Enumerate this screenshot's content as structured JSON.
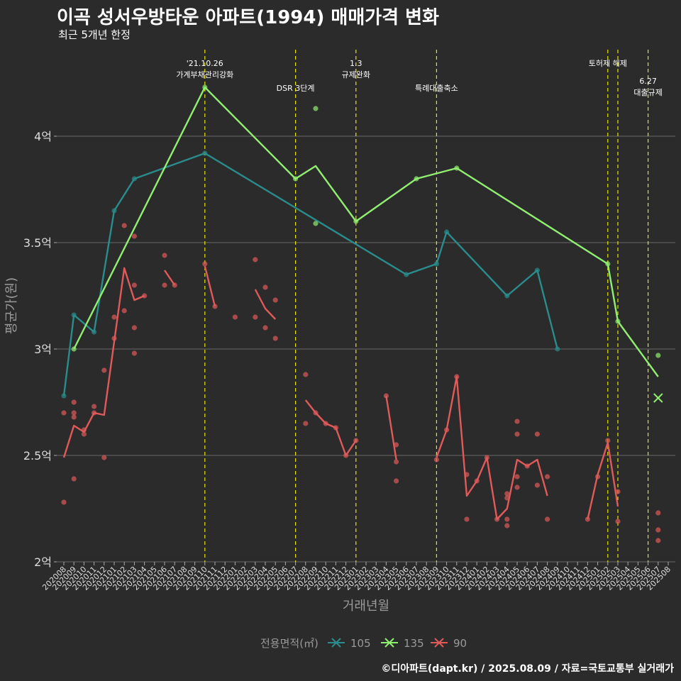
{
  "title": "이곡 성서우방타운 아파트(1994) 매매가격 변화",
  "subtitle": "최근 5개년 한정",
  "footer": "©디아파트(dapt.kr) / 2025.08.09 / 자료=국토교통부 실거래가",
  "colors": {
    "background": "#2b2b2b",
    "grid": "#6a6a6a",
    "event_line": "#e6e600",
    "s105": "#2a8c8c",
    "s135": "#90ee70",
    "s90": "#e05a5a"
  },
  "chart_data": {
    "type": "line",
    "xlabel": "거래년월",
    "ylabel": "평균가(원)",
    "x": [
      "202008",
      "202009",
      "202010",
      "202011",
      "202012",
      "202101",
      "202102",
      "202103",
      "202104",
      "202105",
      "202106",
      "202107",
      "202108",
      "202109",
      "202110",
      "202111",
      "202112",
      "202201",
      "202202",
      "202203",
      "202204",
      "202205",
      "202206",
      "202207",
      "202208",
      "202209",
      "202210",
      "202211",
      "202212",
      "202301",
      "202302",
      "202303",
      "202304",
      "202305",
      "202306",
      "202307",
      "202308",
      "202309",
      "202310",
      "202311",
      "202312",
      "202401",
      "202402",
      "202403",
      "202404",
      "202405",
      "202406",
      "202407",
      "202408",
      "202409",
      "202410",
      "202411",
      "202412",
      "202501",
      "202502",
      "202503",
      "202504",
      "202505",
      "202506",
      "202507",
      "202508"
    ],
    "ylim": [
      2.0,
      4.4
    ],
    "yticks": [
      2.0,
      2.5,
      3.0,
      3.5,
      4.0
    ],
    "ytick_labels": [
      "2억",
      "2.5억",
      "3억",
      "3.5억",
      "4억"
    ],
    "grid": true,
    "legend": {
      "title": "전용면적(㎡)",
      "position": "bottom"
    },
    "events": [
      {
        "x": "202110",
        "label": [
          "'21.10.26",
          "가계부채관리강화"
        ],
        "row": 0
      },
      {
        "x": "202207",
        "label": [
          "DSR 3단계"
        ],
        "row": 1
      },
      {
        "x": "202301",
        "label": [
          "1.3",
          "규제완화"
        ],
        "row": 0
      },
      {
        "x": "202309",
        "label": [
          "특례대출축소"
        ],
        "row": 1
      },
      {
        "x": "202502",
        "label": [
          "토허제 해제"
        ],
        "row": 0
      },
      {
        "x": "202503",
        "label": [],
        "row": 0
      },
      {
        "x": "202506",
        "label": [
          "6.27",
          "대출규제"
        ],
        "row": 2
      }
    ],
    "series": [
      {
        "name": "105",
        "color": "#2a8c8c",
        "line": [
          [
            "202008",
            2.78
          ],
          [
            "202009",
            3.16
          ],
          [
            "202011",
            3.08
          ],
          [
            "202101",
            3.65
          ],
          [
            "202103",
            3.8
          ],
          [
            "202110",
            3.92
          ],
          [
            "202306",
            3.35
          ],
          [
            "202309",
            3.4
          ],
          [
            "202310",
            3.55
          ],
          [
            "202404",
            3.25
          ],
          [
            "202407",
            3.37
          ],
          [
            "202409",
            3.0
          ]
        ],
        "points": [
          [
            "202008",
            2.78
          ],
          [
            "202009",
            3.16
          ],
          [
            "202011",
            3.08
          ],
          [
            "202101",
            3.65
          ],
          [
            "202103",
            3.8
          ],
          [
            "202110",
            3.92
          ],
          [
            "202306",
            3.35
          ],
          [
            "202309",
            3.4
          ],
          [
            "202310",
            3.55
          ],
          [
            "202404",
            3.25
          ],
          [
            "202407",
            3.37
          ],
          [
            "202409",
            3.0
          ]
        ]
      },
      {
        "name": "135",
        "color": "#90ee70",
        "line": [
          [
            "202009",
            3.0
          ],
          [
            "202110",
            4.23
          ],
          [
            "202207",
            3.8
          ],
          [
            "202209",
            3.86
          ],
          [
            "202301",
            3.6
          ],
          [
            "202307",
            3.8
          ],
          [
            "202311",
            3.85
          ],
          [
            "202502",
            3.4
          ],
          [
            "202503",
            3.13
          ],
          [
            "202507",
            2.87
          ]
        ],
        "points": [
          [
            "202009",
            3.0
          ],
          [
            "202110",
            4.23
          ],
          [
            "202207",
            3.8
          ],
          [
            "202209",
            4.13
          ],
          [
            "202209",
            3.59
          ],
          [
            "202301",
            3.6
          ],
          [
            "202307",
            3.8
          ],
          [
            "202311",
            3.85
          ],
          [
            "202502",
            3.4
          ],
          [
            "202503",
            3.13
          ],
          [
            "202507",
            2.97
          ]
        ],
        "cross": [
          [
            "202507",
            2.77
          ]
        ]
      },
      {
        "name": "90",
        "color": "#e05a5a",
        "segments": [
          [
            [
              "202008",
              2.49
            ],
            [
              "202009",
              2.64
            ],
            [
              "202010",
              2.61
            ],
            [
              "202011",
              2.7
            ],
            [
              "202012",
              2.69
            ],
            [
              "202102",
              3.38
            ],
            [
              "202103",
              3.23
            ],
            [
              "202104",
              3.25
            ]
          ],
          [
            [
              "202106",
              3.37
            ],
            [
              "202107",
              3.3
            ]
          ],
          [
            [
              "202110",
              3.39
            ],
            [
              "202111",
              3.2
            ]
          ],
          [
            [
              "202203",
              3.28
            ],
            [
              "202204",
              3.19
            ],
            [
              "202205",
              3.14
            ]
          ],
          [
            [
              "202208",
              2.76
            ],
            [
              "202209",
              2.7
            ],
            [
              "202210",
              2.65
            ],
            [
              "202211",
              2.63
            ],
            [
              "202212",
              2.5
            ],
            [
              "202301",
              2.57
            ]
          ],
          [
            [
              "202304",
              2.78
            ],
            [
              "202305",
              2.48
            ]
          ],
          [
            [
              "202309",
              2.49
            ],
            [
              "202310",
              2.62
            ],
            [
              "202311",
              2.87
            ],
            [
              "202312",
              2.31
            ],
            [
              "202401",
              2.38
            ],
            [
              "202402",
              2.49
            ],
            [
              "202403",
              2.2
            ],
            [
              "202404",
              2.25
            ],
            [
              "202405",
              2.48
            ],
            [
              "202406",
              2.45
            ],
            [
              "202407",
              2.48
            ],
            [
              "202408",
              2.31
            ]
          ],
          [
            [
              "202412",
              2.2
            ],
            [
              "202501",
              2.41
            ],
            [
              "202502",
              2.56
            ],
            [
              "202503",
              2.26
            ]
          ]
        ],
        "points": [
          [
            "202008",
            2.7
          ],
          [
            "202008",
            2.28
          ],
          [
            "202009",
            2.75
          ],
          [
            "202009",
            2.7
          ],
          [
            "202009",
            2.68
          ],
          [
            "202009",
            2.39
          ],
          [
            "202010",
            2.62
          ],
          [
            "202010",
            2.6
          ],
          [
            "202011",
            2.73
          ],
          [
            "202011",
            2.7
          ],
          [
            "202012",
            2.9
          ],
          [
            "202012",
            2.49
          ],
          [
            "202101",
            3.15
          ],
          [
            "202101",
            3.05
          ],
          [
            "202102",
            3.58
          ],
          [
            "202102",
            3.18
          ],
          [
            "202103",
            3.53
          ],
          [
            "202103",
            3.3
          ],
          [
            "202103",
            3.1
          ],
          [
            "202103",
            2.98
          ],
          [
            "202104",
            3.25
          ],
          [
            "202106",
            3.44
          ],
          [
            "202106",
            3.3
          ],
          [
            "202107",
            3.3
          ],
          [
            "202110",
            3.4
          ],
          [
            "202111",
            3.2
          ],
          [
            "202201",
            3.15
          ],
          [
            "202203",
            3.42
          ],
          [
            "202203",
            3.15
          ],
          [
            "202204",
            3.29
          ],
          [
            "202204",
            3.1
          ],
          [
            "202205",
            3.23
          ],
          [
            "202205",
            3.05
          ],
          [
            "202208",
            2.88
          ],
          [
            "202208",
            2.65
          ],
          [
            "202209",
            2.7
          ],
          [
            "202210",
            2.65
          ],
          [
            "202211",
            2.63
          ],
          [
            "202212",
            2.5
          ],
          [
            "202301",
            2.57
          ],
          [
            "202304",
            2.78
          ],
          [
            "202305",
            2.55
          ],
          [
            "202305",
            2.47
          ],
          [
            "202305",
            2.38
          ],
          [
            "202309",
            2.48
          ],
          [
            "202310",
            2.62
          ],
          [
            "202311",
            2.87
          ],
          [
            "202312",
            2.41
          ],
          [
            "202312",
            2.2
          ],
          [
            "202401",
            2.38
          ],
          [
            "202402",
            2.49
          ],
          [
            "202403",
            2.2
          ],
          [
            "202404",
            2.32
          ],
          [
            "202404",
            2.3
          ],
          [
            "202404",
            2.2
          ],
          [
            "202404",
            2.17
          ],
          [
            "202405",
            2.66
          ],
          [
            "202405",
            2.6
          ],
          [
            "202405",
            2.4
          ],
          [
            "202405",
            2.35
          ],
          [
            "202406",
            2.45
          ],
          [
            "202407",
            2.6
          ],
          [
            "202407",
            2.36
          ],
          [
            "202408",
            2.4
          ],
          [
            "202408",
            2.2
          ],
          [
            "202412",
            2.2
          ],
          [
            "202501",
            2.4
          ],
          [
            "202502",
            2.57
          ],
          [
            "202503",
            2.33
          ],
          [
            "202503",
            2.19
          ],
          [
            "202507",
            2.23
          ],
          [
            "202507",
            2.15
          ],
          [
            "202507",
            2.1
          ]
        ]
      }
    ]
  }
}
